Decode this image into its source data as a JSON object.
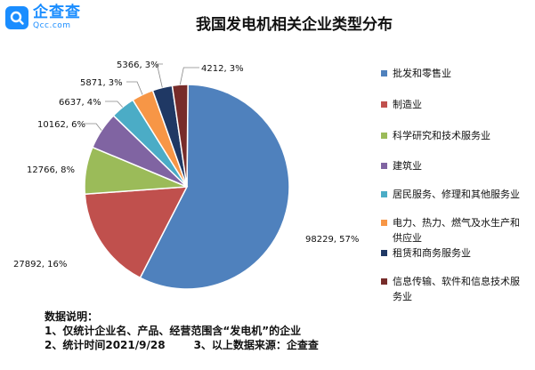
{
  "brand": {
    "name": "企查查",
    "url": "Qcc.com",
    "color": "#1a8dff"
  },
  "chart_data": {
    "type": "pie",
    "title": "我国发电机相关企业类型分布",
    "slices": [
      {
        "name": "批发和零售业",
        "value": 98229,
        "percent": 57,
        "label": "98229, 57%",
        "color": "#4f81bd"
      },
      {
        "name": "制造业",
        "value": 27892,
        "percent": 16,
        "label": "27892, 16%",
        "color": "#c0504d"
      },
      {
        "name": "科学研究和技术服务业",
        "value": 12766,
        "percent": 8,
        "label": "12766, 8%",
        "color": "#9bbb59"
      },
      {
        "name": "建筑业",
        "value": 10162,
        "percent": 6,
        "label": "10162, 6%",
        "color": "#8064a2"
      },
      {
        "name": "居民服务、修理和其他服务业",
        "value": 6637,
        "percent": 4,
        "label": "6637, 4%",
        "color": "#4bacc6"
      },
      {
        "name": "电力、热力、燃气及水生产和供应业",
        "value": 5871,
        "percent": 3,
        "label": "5871, 3%",
        "color": "#f79646"
      },
      {
        "name": "租赁和商务服务业",
        "value": 5366,
        "percent": 3,
        "label": "5366, 3%",
        "color": "#1f3864"
      },
      {
        "name": "信息传输、软件和信息技术服务业",
        "value": 4212,
        "percent": 3,
        "label": "4212, 3%",
        "color": "#772c2a"
      }
    ],
    "legend_position": "right"
  },
  "notes": {
    "heading": "数据说明：",
    "line1": "1、仅统计企业名、产品、经营范围含“发电机”的企业",
    "line2a": "2、统计时间2021/9/28",
    "line2b": "3、以上数据来源：企查查"
  }
}
